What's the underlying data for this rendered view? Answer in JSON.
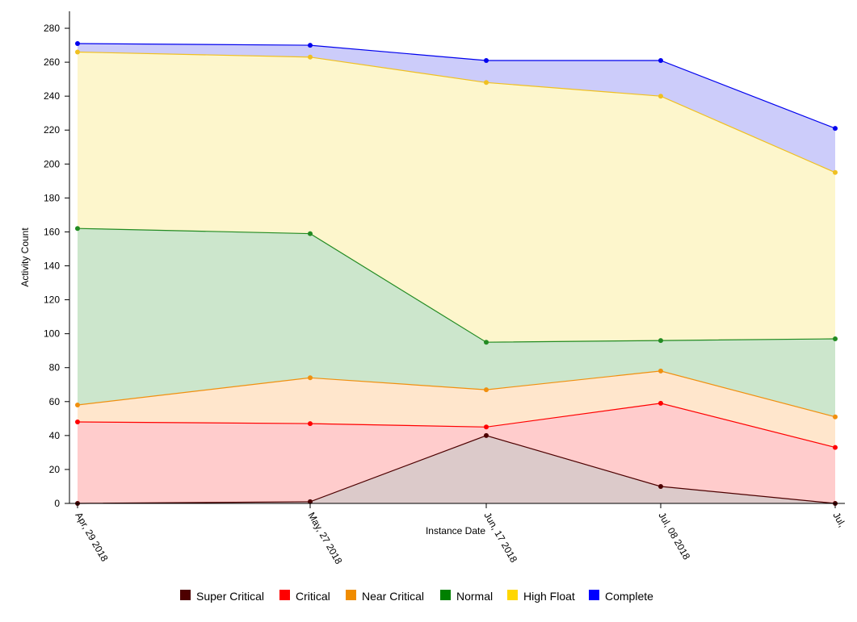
{
  "chart_data": {
    "type": "area",
    "stacked": true,
    "title": "",
    "xlabel": "Instance Date",
    "ylabel": "Activity Count",
    "categories": [
      "Apr, 29 2018",
      "May, 27 2018",
      "Jun, 17 2018",
      "Jul, 08 2018",
      "Jul,"
    ],
    "ylim": [
      0,
      290
    ],
    "yticks": [
      0,
      20,
      40,
      60,
      80,
      100,
      120,
      140,
      160,
      180,
      200,
      220,
      240,
      260,
      280
    ],
    "grid": false,
    "legend_position": "bottom",
    "series": [
      {
        "name": "Super Critical",
        "line_color": "#4d0000",
        "fill_color": "#dccaca",
        "legend_color": "#4d0000",
        "values": [
          0,
          1,
          40,
          10,
          0
        ]
      },
      {
        "name": "Critical",
        "line_color": "#ff0000",
        "fill_color": "#ffcccc",
        "legend_color": "#ff0000",
        "values": [
          48,
          47,
          45,
          59,
          33
        ]
      },
      {
        "name": "Near Critical",
        "line_color": "#f0900f",
        "fill_color": "#ffe6cc",
        "legend_color": "#f08c00",
        "values": [
          58,
          74,
          67,
          78,
          51
        ]
      },
      {
        "name": "Normal",
        "line_color": "#228b22",
        "fill_color": "#cce6cc",
        "legend_color": "#008000",
        "values": [
          162,
          159,
          95,
          96,
          97
        ]
      },
      {
        "name": "High Float",
        "line_color": "#f0c020",
        "fill_color": "#fdf6cc",
        "legend_color": "#ffd700",
        "values": [
          266,
          263,
          248,
          240,
          195
        ]
      },
      {
        "name": "Complete",
        "line_color": "#0000ee",
        "fill_color": "#ccccfa",
        "legend_color": "#0000ff",
        "values": [
          271,
          270,
          261,
          261,
          221
        ]
      }
    ]
  }
}
